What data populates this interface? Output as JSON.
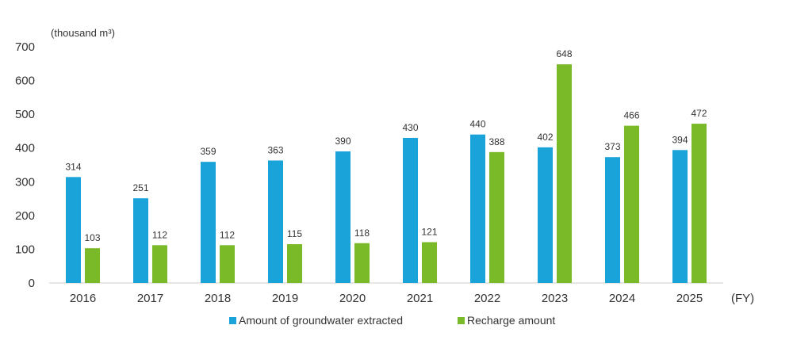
{
  "chart_data": {
    "type": "bar",
    "unit_label": "(thousand m³)",
    "x_unit_label": "(FY)",
    "categories": [
      "2016",
      "2017",
      "2018",
      "2019",
      "2020",
      "2021",
      "2022",
      "2023",
      "2024",
      "2025"
    ],
    "series": [
      {
        "name": "Amount of groundwater extracted",
        "color": "#1aa3d9",
        "values": [
          314,
          251,
          359,
          363,
          390,
          430,
          440,
          402,
          373,
          394
        ]
      },
      {
        "name": "Recharge amount",
        "color": "#7ab928",
        "values": [
          103,
          112,
          112,
          115,
          118,
          121,
          388,
          648,
          466,
          472
        ]
      }
    ],
    "ylim": [
      0,
      700
    ],
    "yticks": [
      0,
      100,
      200,
      300,
      400,
      500,
      600,
      700
    ],
    "grid": false,
    "legend_position": "bottom"
  }
}
